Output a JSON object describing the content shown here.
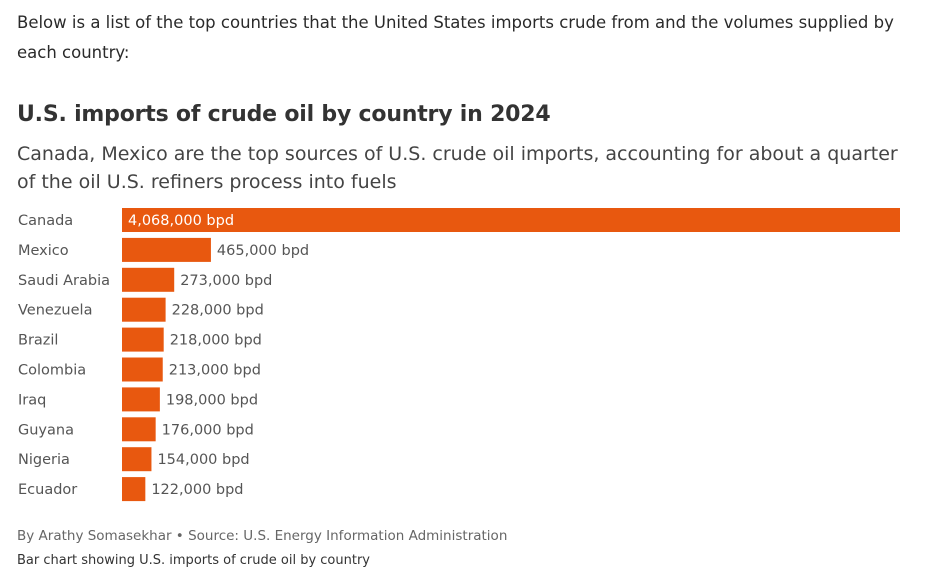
{
  "intro_text": "Below is a list of the top countries that the United States imports crude from and the volumes supplied by each country:",
  "footer": {
    "credit": "By Arathy Somasekhar • Source: U.S. Energy Information Administration",
    "caption": "Bar chart showing U.S. imports of crude oil by country"
  },
  "colors": {
    "bar": "#e8580f",
    "label": "#555555",
    "value_inside": "#ffffff"
  },
  "chart_data": {
    "type": "bar",
    "orientation": "horizontal",
    "title": "U.S. imports of crude oil by country in 2024",
    "subtitle": "Canada, Mexico are the top sources of U.S. crude oil imports, accounting for about a quarter of the oil U.S. refiners process into fuels",
    "categories": [
      "Canada",
      "Mexico",
      "Saudi Arabia",
      "Venezuela",
      "Brazil",
      "Colombia",
      "Iraq",
      "Guyana",
      "Nigeria",
      "Ecuador"
    ],
    "values": [
      4068000,
      465000,
      273000,
      228000,
      218000,
      213000,
      198000,
      176000,
      154000,
      122000
    ],
    "value_labels": [
      "4,068,000 bpd",
      "465,000 bpd",
      "273,000 bpd",
      "228,000 bpd",
      "218,000 bpd",
      "213,000 bpd",
      "198,000 bpd",
      "176,000 bpd",
      "154,000 bpd",
      "122,000 bpd"
    ],
    "unit": "bpd",
    "xlim": [
      0,
      4068000
    ],
    "grid": false,
    "legend": "none"
  }
}
